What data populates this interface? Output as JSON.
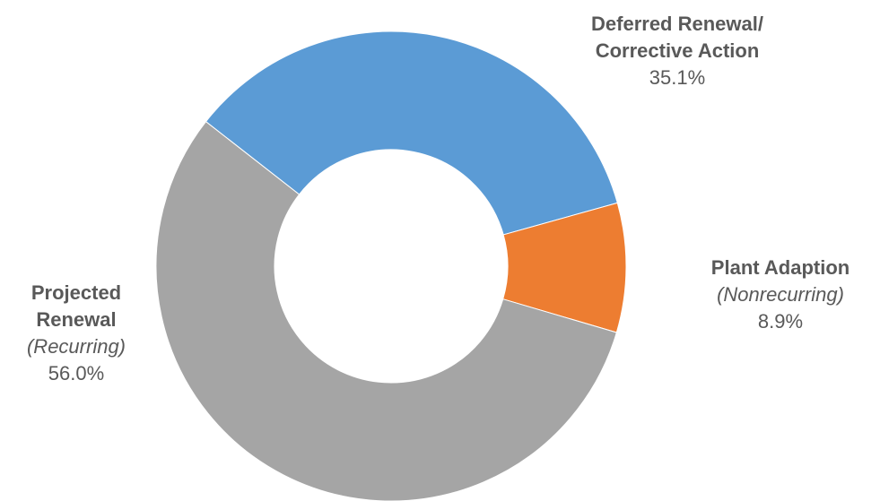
{
  "chart_data": {
    "type": "pie",
    "donut": true,
    "title": "",
    "slices": [
      {
        "name_lines": [
          "Deferred Renewal/",
          "Corrective Action"
        ],
        "subtitle": "",
        "value": 35.1,
        "label": "35.1%",
        "color": "#5B9BD5"
      },
      {
        "name_lines": [
          "Plant Adaption"
        ],
        "subtitle": "(Nonrecurring)",
        "value": 8.9,
        "label": "8.9%",
        "color": "#ED7D31"
      },
      {
        "name_lines": [
          "Projected",
          "Renewal"
        ],
        "subtitle": "(Recurring)",
        "value": 56.0,
        "label": "56.0%",
        "color": "#A5A5A5"
      }
    ]
  }
}
